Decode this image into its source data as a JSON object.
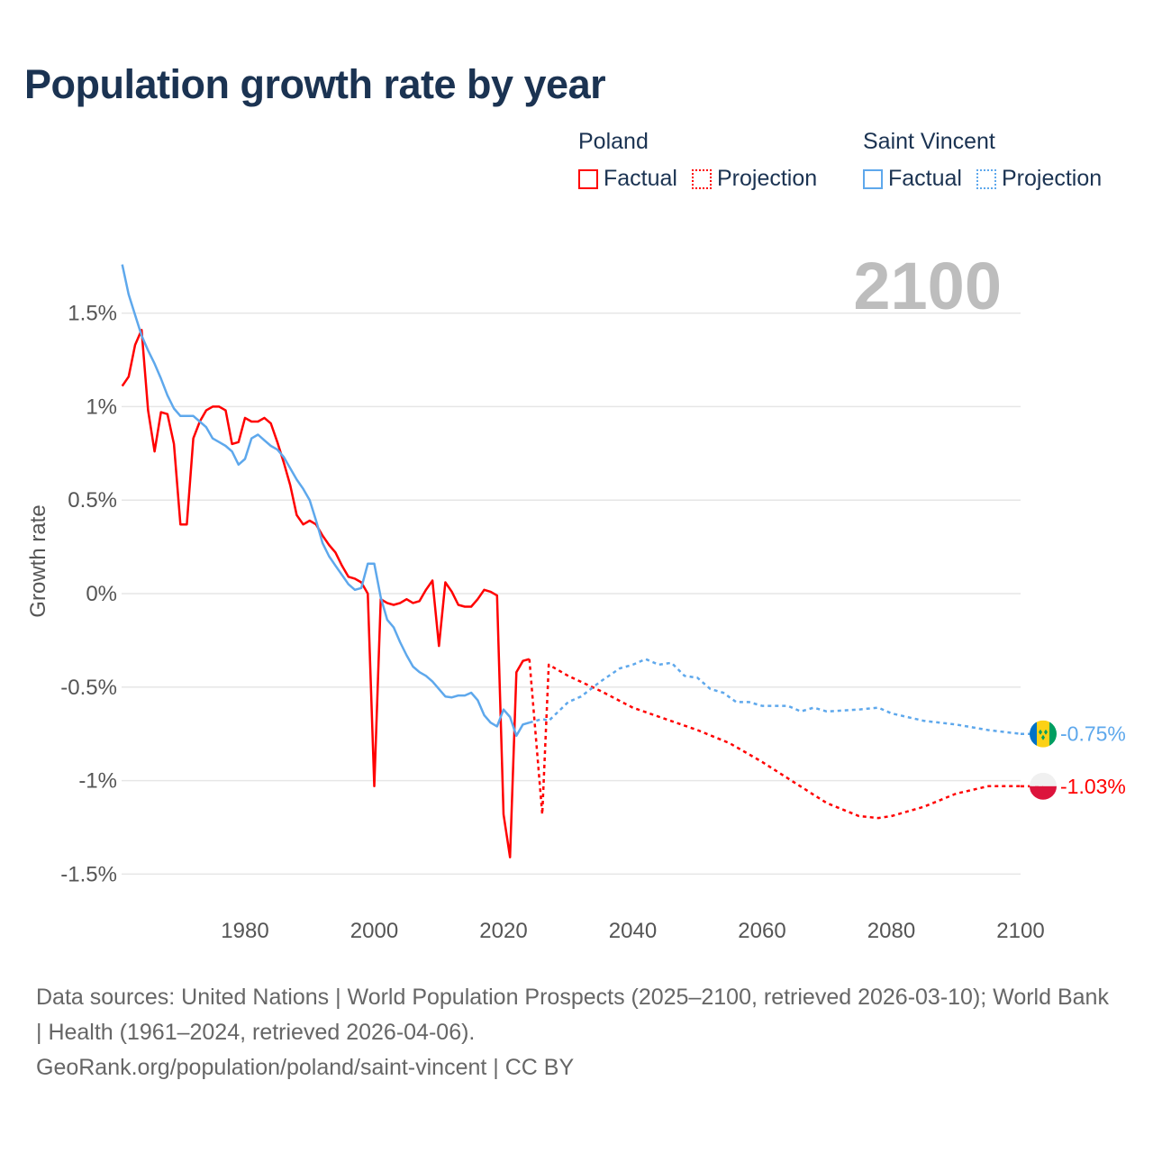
{
  "title": "Population growth rate by year",
  "legend": {
    "groups": [
      {
        "name": "Poland",
        "factual": "Factual",
        "projection": "Projection",
        "color": "#ff0000"
      },
      {
        "name": "Saint Vincent",
        "factual": "Factual",
        "projection": "Projection",
        "color": "#5ea8ec"
      }
    ]
  },
  "year_display": "2100",
  "footer": {
    "sources": "Data sources: United Nations | World Population Prospects (2025–2100, retrieved 2026-03-10); World Bank | Health (1961–2024, retrieved 2026-04-06).",
    "link": "GeoRank.org/population/poland/saint-vincent | CC BY"
  },
  "chart_data": {
    "type": "line",
    "title": "Population growth rate by year",
    "xlabel": "",
    "ylabel": "Growth rate",
    "xlim": [
      1961,
      2100
    ],
    "ylim": [
      -1.7,
      1.8
    ],
    "x_ticks": [
      1980,
      2000,
      2020,
      2040,
      2060,
      2080,
      2100
    ],
    "x_tick_labels": [
      "1980",
      "2000",
      "2020",
      "2040",
      "2060",
      "2080",
      "2100"
    ],
    "y_ticks": [
      1.5,
      1,
      0.5,
      0,
      -0.5,
      -1,
      -1.5
    ],
    "y_tick_labels": [
      "1.5%",
      "1%",
      "0.5%",
      "0%",
      "-0.5%",
      "-1%",
      "-1.5%"
    ],
    "grid": true,
    "legend_position": "top-right",
    "series": [
      {
        "name": "Poland Factual",
        "color": "#ff0000",
        "dashed": false,
        "x": [
          1961,
          1962,
          1963,
          1964,
          1965,
          1966,
          1967,
          1968,
          1969,
          1970,
          1971,
          1972,
          1973,
          1974,
          1975,
          1976,
          1977,
          1978,
          1979,
          1980,
          1981,
          1982,
          1983,
          1984,
          1985,
          1986,
          1987,
          1988,
          1989,
          1990,
          1991,
          1992,
          1993,
          1994,
          1995,
          1996,
          1997,
          1998,
          1999,
          2000,
          2001,
          2002,
          2003,
          2004,
          2005,
          2006,
          2007,
          2008,
          2009,
          2010,
          2011,
          2012,
          2013,
          2014,
          2015,
          2016,
          2017,
          2018,
          2019,
          2020,
          2021,
          2022,
          2023,
          2024
        ],
        "values": [
          1.11,
          1.16,
          1.33,
          1.41,
          0.98,
          0.76,
          0.97,
          0.96,
          0.8,
          0.37,
          0.37,
          0.83,
          0.92,
          0.98,
          1.0,
          1.0,
          0.98,
          0.8,
          0.81,
          0.94,
          0.92,
          0.92,
          0.94,
          0.91,
          0.81,
          0.7,
          0.58,
          0.42,
          0.37,
          0.39,
          0.37,
          0.31,
          0.26,
          0.22,
          0.15,
          0.09,
          0.08,
          0.06,
          0.0,
          -1.03,
          -0.03,
          -0.05,
          -0.06,
          -0.05,
          -0.03,
          -0.05,
          -0.04,
          0.02,
          0.07,
          -0.28,
          0.06,
          0.01,
          -0.06,
          -0.07,
          -0.07,
          -0.03,
          0.02,
          0.01,
          -0.01,
          -1.18,
          -1.41,
          -0.42,
          -0.36,
          -0.35
        ]
      },
      {
        "name": "Poland Projection",
        "color": "#ff0000",
        "dashed": true,
        "x": [
          2024,
          2026,
          2027,
          2030,
          2035,
          2040,
          2045,
          2050,
          2055,
          2060,
          2065,
          2070,
          2075,
          2078,
          2080,
          2085,
          2090,
          2095,
          2100
        ],
        "values": [
          -0.35,
          -1.18,
          -0.38,
          -0.44,
          -0.52,
          -0.61,
          -0.67,
          -0.73,
          -0.8,
          -0.9,
          -1.01,
          -1.12,
          -1.19,
          -1.2,
          -1.19,
          -1.14,
          -1.07,
          -1.03,
          -1.03
        ]
      },
      {
        "name": "Saint Vincent Factual",
        "color": "#5ea8ec",
        "dashed": false,
        "x": [
          1961,
          1962,
          1963,
          1964,
          1965,
          1966,
          1967,
          1968,
          1969,
          1970,
          1971,
          1972,
          1973,
          1974,
          1975,
          1976,
          1977,
          1978,
          1979,
          1980,
          1981,
          1982,
          1983,
          1984,
          1985,
          1986,
          1987,
          1988,
          1989,
          1990,
          1991,
          1992,
          1993,
          1994,
          1995,
          1996,
          1997,
          1998,
          1999,
          2000,
          2001,
          2002,
          2003,
          2004,
          2005,
          2006,
          2007,
          2008,
          2009,
          2010,
          2011,
          2012,
          2013,
          2014,
          2015,
          2016,
          2017,
          2018,
          2019,
          2020,
          2021,
          2022,
          2023,
          2024
        ],
        "values": [
          1.76,
          1.6,
          1.49,
          1.38,
          1.3,
          1.23,
          1.15,
          1.06,
          0.99,
          0.95,
          0.95,
          0.95,
          0.92,
          0.89,
          0.83,
          0.81,
          0.79,
          0.76,
          0.69,
          0.72,
          0.83,
          0.85,
          0.82,
          0.79,
          0.77,
          0.73,
          0.67,
          0.61,
          0.56,
          0.5,
          0.39,
          0.27,
          0.2,
          0.15,
          0.1,
          0.05,
          0.02,
          0.03,
          0.16,
          0.16,
          -0.02,
          -0.14,
          -0.18,
          -0.26,
          -0.33,
          -0.39,
          -0.42,
          -0.44,
          -0.47,
          -0.51,
          -0.55,
          -0.555,
          -0.545,
          -0.545,
          -0.53,
          -0.57,
          -0.65,
          -0.69,
          -0.71,
          -0.62,
          -0.66,
          -0.76,
          -0.7,
          -0.69
        ]
      },
      {
        "name": "Saint Vincent Projection",
        "color": "#5ea8ec",
        "dashed": true,
        "x": [
          2024,
          2025,
          2026,
          2027,
          2030,
          2032,
          2035,
          2038,
          2040,
          2042,
          2044,
          2046,
          2048,
          2050,
          2052,
          2054,
          2056,
          2058,
          2060,
          2064,
          2066,
          2068,
          2070,
          2075,
          2078,
          2080,
          2085,
          2090,
          2095,
          2100
        ],
        "values": [
          -0.69,
          -0.68,
          -0.67,
          -0.68,
          -0.58,
          -0.55,
          -0.47,
          -0.4,
          -0.38,
          -0.35,
          -0.38,
          -0.37,
          -0.44,
          -0.45,
          -0.51,
          -0.53,
          -0.58,
          -0.58,
          -0.6,
          -0.6,
          -0.63,
          -0.61,
          -0.63,
          -0.62,
          -0.61,
          -0.64,
          -0.68,
          -0.7,
          -0.73,
          -0.75
        ]
      }
    ],
    "end_labels": [
      {
        "series": "Saint Vincent",
        "value": -0.75,
        "label": "-0.75%",
        "color": "#5ea8ec",
        "flag": "saint-vincent-flag"
      },
      {
        "series": "Poland",
        "value": -1.03,
        "label": "-1.03%",
        "color": "#ff0000",
        "flag": "poland-flag"
      }
    ]
  }
}
